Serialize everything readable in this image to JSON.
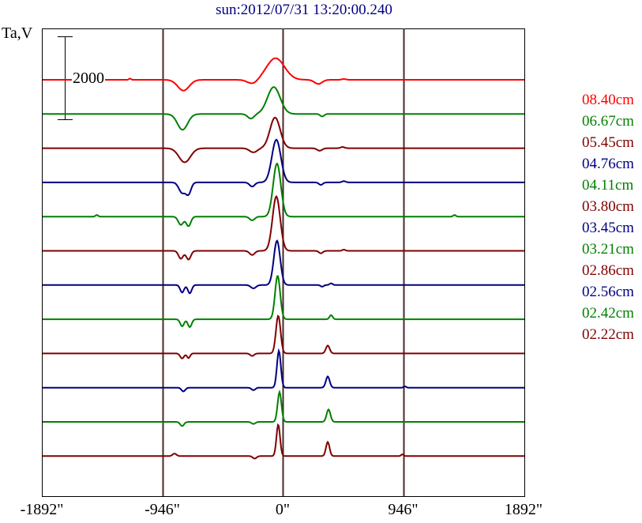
{
  "chart_data": {
    "type": "line",
    "title": "sun:2012/07/31 13:20:00.240",
    "ylabel": "Ta,V",
    "xlim": [
      -1892,
      1892
    ],
    "x_unit": "arcsec",
    "xticks": [
      "-1892\"",
      "-946\"",
      "0\"",
      "946\"",
      "1892\""
    ],
    "xtick_values": [
      -1892,
      -946,
      0,
      946,
      1892
    ],
    "vertical_lines": [
      -946,
      0,
      946
    ],
    "scale_bar": {
      "label": "2000",
      "value": 2000
    },
    "stacked": true,
    "grid": false,
    "legend_placement": "right",
    "series": [
      {
        "name": "08.40cm",
        "color": "#ff0000",
        "components": [
          [
            -1200,
            30,
            8
          ],
          [
            -780,
            -260,
            45
          ],
          [
            -236,
            -100,
            40
          ],
          [
            -56,
            520,
            70
          ],
          [
            280,
            -100,
            30
          ],
          [
            480,
            20,
            15
          ]
        ]
      },
      {
        "name": "06.67cm",
        "color": "#008000",
        "components": [
          [
            -787,
            -380,
            40
          ],
          [
            -250,
            -110,
            25
          ],
          [
            -70,
            650,
            50
          ],
          [
            310,
            -60,
            15
          ]
        ]
      },
      {
        "name": "05.45cm",
        "color": "#800000",
        "components": [
          [
            -770,
            -340,
            45
          ],
          [
            -230,
            -100,
            30
          ],
          [
            -60,
            740,
            40
          ],
          [
            290,
            -60,
            20
          ],
          [
            470,
            30,
            15
          ]
        ]
      },
      {
        "name": "04.76cm",
        "color": "#000080",
        "components": [
          [
            -790,
            -250,
            25
          ],
          [
            -740,
            -270,
            20
          ],
          [
            -240,
            -100,
            20
          ],
          [
            -50,
            1030,
            35
          ],
          [
            300,
            -60,
            15
          ],
          [
            480,
            30,
            15
          ]
        ]
      },
      {
        "name": "04.11cm",
        "color": "#008000",
        "components": [
          [
            -800,
            -200,
            20
          ],
          [
            -740,
            -230,
            18
          ],
          [
            -240,
            -90,
            20
          ],
          [
            -45,
            1280,
            30
          ],
          [
            -1460,
            40,
            10
          ],
          [
            1350,
            40,
            10
          ]
        ]
      },
      {
        "name": "03.80cm",
        "color": "#800000",
        "components": [
          [
            -800,
            -190,
            18
          ],
          [
            -740,
            -210,
            18
          ],
          [
            -240,
            -100,
            20
          ],
          [
            -50,
            1310,
            30
          ],
          [
            300,
            -60,
            15
          ],
          [
            480,
            30,
            12
          ]
        ]
      },
      {
        "name": "03.45cm",
        "color": "#000080",
        "components": [
          [
            -790,
            -180,
            15
          ],
          [
            -730,
            -200,
            15
          ],
          [
            -230,
            -80,
            20
          ],
          [
            -45,
            1070,
            25
          ],
          [
            310,
            -40,
            12
          ],
          [
            380,
            40,
            12
          ]
        ]
      },
      {
        "name": "03.21cm",
        "color": "#008000",
        "components": [
          [
            -790,
            -170,
            15
          ],
          [
            -730,
            -190,
            15
          ],
          [
            -40,
            1050,
            20
          ],
          [
            380,
            100,
            12
          ]
        ]
      },
      {
        "name": "02.86cm",
        "color": "#800000",
        "components": [
          [
            -790,
            -120,
            15
          ],
          [
            -740,
            -110,
            12
          ],
          [
            -240,
            -60,
            15
          ],
          [
            -35,
            910,
            18
          ],
          [
            354,
            190,
            15
          ]
        ]
      },
      {
        "name": "02.56cm",
        "color": "#000080",
        "components": [
          [
            -780,
            -90,
            15
          ],
          [
            -230,
            -60,
            15
          ],
          [
            -30,
            890,
            15
          ],
          [
            354,
            270,
            15
          ],
          [
            960,
            30,
            10
          ]
        ]
      },
      {
        "name": "02.42cm",
        "color": "#008000",
        "components": [
          [
            -790,
            -100,
            15
          ],
          [
            -230,
            -50,
            15
          ],
          [
            -25,
            720,
            15
          ],
          [
            360,
            300,
            15
          ]
        ]
      },
      {
        "name": "02.22cm",
        "color": "#800000",
        "components": [
          [
            -850,
            60,
            15
          ],
          [
            -220,
            -60,
            15
          ],
          [
            -35,
            760,
            14
          ],
          [
            354,
            340,
            14
          ],
          [
            940,
            40,
            10
          ]
        ]
      }
    ]
  }
}
